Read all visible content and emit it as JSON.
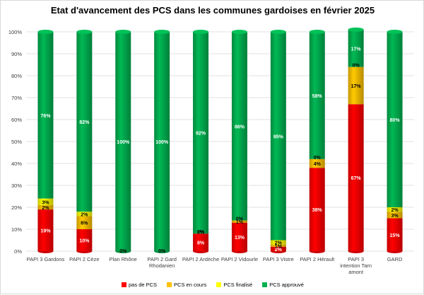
{
  "chart_data": {
    "type": "bar",
    "stacked": true,
    "title": "Etat d'avancement des PCS dans les communes gardoises en février 2025",
    "categories": [
      "PAPI 3 Gardons",
      "PAPI 2 Cèze",
      "Plan Rhône",
      "PAPI 2 Gard Rhodanien",
      "PAPI 2 Ardèche",
      "PAPI 2 Vidourle",
      "PAPI 3 Vistre",
      "PAPI 2 Hérault",
      "PAPI 3 intention Tarn amont",
      "GARD"
    ],
    "category_lines": [
      [
        "PAPI 3 Gardons"
      ],
      [
        "PAPI 2 Cèze"
      ],
      [
        "Plan Rhône"
      ],
      [
        "PAPI 2 Gard",
        "Rhodanien"
      ],
      [
        "PAPI 2 Ardèche"
      ],
      [
        "PAPI 2 Vidourle"
      ],
      [
        "PAPI 3 Vistre"
      ],
      [
        "PAPI 2 Hérault"
      ],
      [
        "PAPI 3",
        "intention Tarn",
        "amont"
      ],
      [
        "GARD"
      ]
    ],
    "series": [
      {
        "name": "pas de PCS",
        "color": "#ff0000",
        "values": [
          19,
          10,
          0,
          0,
          8,
          13,
          2,
          38,
          67,
          15
        ]
      },
      {
        "name": "PCS en cours",
        "color": "#ffc000",
        "values": [
          2,
          6,
          0,
          0,
          0,
          1,
          1,
          4,
          17,
          3
        ]
      },
      {
        "name": "PCS finalisé",
        "color": "#ffff00",
        "values": [
          3,
          2,
          0,
          0,
          0,
          0,
          2,
          0,
          0,
          2
        ]
      },
      {
        "name": "PCS approuvé",
        "color": "#00b050",
        "values": [
          76,
          82,
          100,
          100,
          92,
          86,
          95,
          58,
          17,
          80
        ]
      }
    ],
    "data_labels": [
      [
        "19%",
        "2%",
        "3%",
        "76%"
      ],
      [
        "10%",
        "6%",
        "2%",
        "82%"
      ],
      [
        "0%",
        "0%",
        "0%",
        "100%"
      ],
      [
        "0%",
        "0%",
        "0%",
        "100%"
      ],
      [
        "8%",
        "0%",
        "0%",
        "92%"
      ],
      [
        "13%",
        "1%",
        "0%",
        "86%"
      ],
      [
        "2%",
        "1%",
        "2%",
        "95%"
      ],
      [
        "38%",
        "4%",
        "0%",
        "58%"
      ],
      [
        "67%",
        "17%",
        "0%",
        "17%"
      ],
      [
        "15%",
        "3%",
        "2%",
        "80%"
      ]
    ],
    "ylim": [
      0,
      100
    ],
    "yticks": [
      "0%",
      "10%",
      "20%",
      "30%",
      "40%",
      "50%",
      "60%",
      "70%",
      "80%",
      "90%",
      "100%"
    ],
    "grid": true,
    "legend_position": "bottom"
  }
}
